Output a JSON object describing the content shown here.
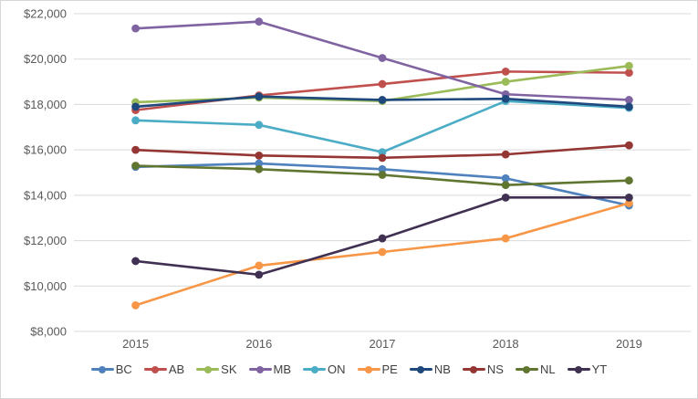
{
  "window": {
    "background": "#ffffff",
    "border_color": "#d6d6d6"
  },
  "chart_data": {
    "type": "line",
    "title": "",
    "xlabel": "",
    "ylabel": "",
    "x": [
      "2015",
      "2016",
      "2017",
      "2018",
      "2019"
    ],
    "series": [
      {
        "name": "BC",
        "color": "#4F81BD",
        "values": [
          15250,
          15400,
          15150,
          14750,
          13550
        ]
      },
      {
        "name": "AB",
        "color": "#C0504D",
        "values": [
          17750,
          18400,
          18900,
          19450,
          19400
        ]
      },
      {
        "name": "SK",
        "color": "#9BBB59",
        "values": [
          18100,
          18300,
          18150,
          19000,
          19700
        ]
      },
      {
        "name": "MB",
        "color": "#8064A2",
        "values": [
          21350,
          21650,
          20050,
          18450,
          18200
        ]
      },
      {
        "name": "ON",
        "color": "#4BACC6",
        "values": [
          17300,
          17100,
          15900,
          18150,
          17850
        ]
      },
      {
        "name": "PE",
        "color": "#F79646",
        "values": [
          9150,
          10900,
          11500,
          12100,
          13650
        ]
      },
      {
        "name": "NB",
        "color": "#1F497D",
        "values": [
          17900,
          18350,
          18200,
          18250,
          17900
        ]
      },
      {
        "name": "NS",
        "color": "#943634",
        "values": [
          16000,
          15750,
          15650,
          15800,
          16200
        ]
      },
      {
        "name": "NL",
        "color": "#5F7530",
        "values": [
          15300,
          15150,
          14900,
          14450,
          14650
        ]
      },
      {
        "name": "YT",
        "color": "#403152",
        "values": [
          11100,
          10500,
          12100,
          13900,
          13900
        ]
      }
    ],
    "ylim": [
      8000,
      22000
    ],
    "y_step": 2000,
    "y_tick_labels": [
      "$8,000",
      "$10,000",
      "$12,000",
      "$14,000",
      "$16,000",
      "$18,000",
      "$20,000",
      "$22,000"
    ],
    "grid": true,
    "gridline_color": "#D9D9D9",
    "tick_label_color": "#595959",
    "legend_position": "bottom",
    "legend_labels": [
      "BC",
      "AB",
      "SK",
      "MB",
      "ON",
      "PE",
      "NB",
      "NS",
      "NL",
      "YT"
    ]
  }
}
